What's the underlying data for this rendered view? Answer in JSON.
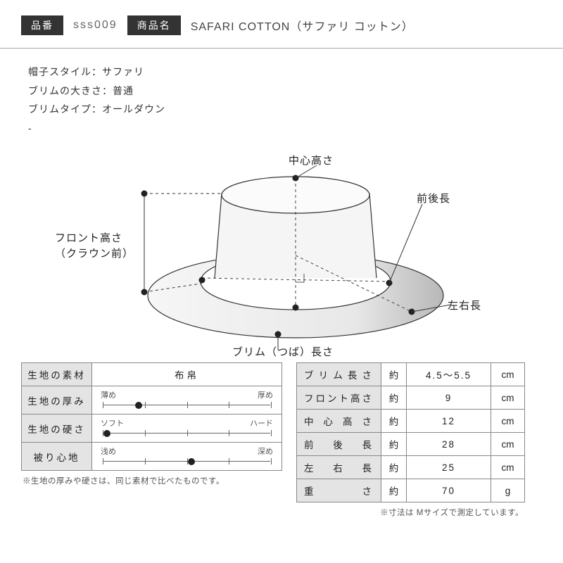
{
  "header": {
    "badge_product_no": "品番",
    "product_no": "sss009",
    "badge_product_name": "商品名",
    "product_name": "SAFARI COTTON（サファリ コットン）"
  },
  "specs": {
    "line1": "帽子スタイル：サファリ",
    "line2": "ブリムの大きさ：普通",
    "line3": "ブリムタイプ：オールダウン",
    "line4": "-"
  },
  "diagram": {
    "label_center_height": "中心高さ",
    "label_front_back": "前後長",
    "label_front_height1": "フロント高さ",
    "label_front_height2": "（クラウン前）",
    "label_left_right": "左右長",
    "label_brim": "ブリム（つば）長さ",
    "stroke": "#333333",
    "fill_light": "#f3f3f3",
    "grad_dark": "#bcbcbc"
  },
  "left_table": {
    "r1_label": "生地の素材",
    "r1_value": "布帛",
    "r2_label": "生地の厚み",
    "r2_min": "薄め",
    "r2_max": "厚め",
    "r2_pos_pct": 20,
    "r3_label": "生地の硬さ",
    "r3_min": "ソフト",
    "r3_max": "ハード",
    "r3_pos_pct": 2,
    "r4_label": "被り心地",
    "r4_min": "浅め",
    "r4_max": "深め",
    "r4_pos_pct": 50,
    "footnote": "※生地の厚みや硬さは、同じ素材で比べたものです。"
  },
  "right_table": {
    "approx": "約",
    "rows": [
      {
        "label": "ブリム長さ",
        "value": "4.5〜5.5",
        "unit": "cm"
      },
      {
        "label": "フロント高さ",
        "value": "9",
        "unit": "cm"
      },
      {
        "label": "中心高さ",
        "value": "12",
        "unit": "cm"
      },
      {
        "label": "前後長",
        "value": "28",
        "unit": "cm"
      },
      {
        "label": "左右長",
        "value": "25",
        "unit": "cm"
      },
      {
        "label": "重さ",
        "value": "70",
        "unit": "g"
      }
    ],
    "footnote": "※寸法は Mサイズで測定しています。"
  },
  "slider": {
    "tick_positions_pct": [
      2,
      26,
      50,
      74,
      98
    ]
  }
}
